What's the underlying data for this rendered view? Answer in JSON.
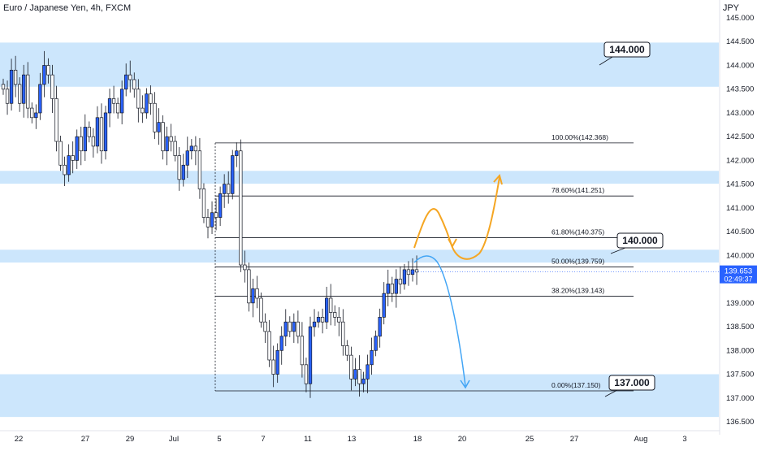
{
  "header": {
    "symbol_title": "Euro / Japanese Yen, 4h, FXCM",
    "currency_unit": "JPY"
  },
  "price_label": {
    "price": "139.653",
    "countdown": "02:49:37",
    "color": "#2962ff"
  },
  "chart_data": {
    "type": "candlestick",
    "instrument": "EUR/JPY",
    "interval": "4h",
    "ylim": [
      136.35,
      145.2
    ],
    "y_ticks": [
      136.5,
      137.0,
      137.5,
      138.0,
      138.5,
      139.0,
      139.5,
      140.0,
      140.5,
      141.0,
      141.5,
      142.0,
      142.5,
      143.0,
      143.5,
      144.0,
      144.5,
      145.0
    ],
    "x_tick_labels": [
      "22",
      "27",
      "29",
      "Jul",
      "5",
      "7",
      "11",
      "13",
      "18",
      "20",
      "25",
      "27",
      "Aug",
      "3"
    ],
    "colors": {
      "up": "#2962ff",
      "down": "#ffffff",
      "outline": "#131722",
      "zone": "#bbdefb",
      "orange_path": "#f5a623",
      "blue_path": "#42a5f5"
    },
    "zones": [
      {
        "from": 143.55,
        "to": 144.48
      },
      {
        "from": 141.51,
        "to": 141.78
      },
      {
        "from": 139.85,
        "to": 140.12
      },
      {
        "from": 136.6,
        "to": 137.5
      }
    ],
    "level_callouts": [
      {
        "label": "144.000",
        "value": 144.0
      },
      {
        "label": "140.000",
        "value": 140.0
      },
      {
        "label": "137.000",
        "value": 137.0
      }
    ],
    "fibonacci": [
      {
        "label": "100.00%(142.368)",
        "value": 142.368
      },
      {
        "label": "78.60%(141.251)",
        "value": 141.251
      },
      {
        "label": "61.80%(140.375)",
        "value": 140.375
      },
      {
        "label": "50.00%(139.759)",
        "value": 139.759
      },
      {
        "label": "38.20%(139.143)",
        "value": 139.143
      },
      {
        "label": "0.00%(137.150)",
        "value": 137.15
      }
    ],
    "closes": [
      143.5,
      143.2,
      143.9,
      143.6,
      143.2,
      143.8,
      143.1,
      142.9,
      143.0,
      143.6,
      144.0,
      143.8,
      143.3,
      142.4,
      141.9,
      141.7,
      142.1,
      142.0,
      142.5,
      142.2,
      142.7,
      142.5,
      142.3,
      142.9,
      142.2,
      143.0,
      143.3,
      143.2,
      143.0,
      143.5,
      143.8,
      143.7,
      143.5,
      143.1,
      143.0,
      143.4,
      143.2,
      142.6,
      142.8,
      142.2,
      142.5,
      142.4,
      142.1,
      141.6,
      141.9,
      142.2,
      142.3,
      142.2,
      141.4,
      140.8,
      140.6,
      140.9,
      140.8,
      141.3,
      141.5,
      141.3,
      142.1,
      142.2,
      139.8,
      139.7,
      139.0,
      139.3,
      139.1,
      138.6,
      138.4,
      137.8,
      137.5,
      138.0,
      138.3,
      138.6,
      138.4,
      138.6,
      138.3,
      137.7,
      137.3,
      138.5,
      138.6,
      138.7,
      138.6,
      139.1,
      138.8,
      138.7,
      138.6,
      138.1,
      137.9,
      137.4,
      137.6,
      137.3,
      137.4,
      137.7,
      138.0,
      138.3,
      138.7,
      139.2,
      139.4,
      139.2,
      139.5,
      139.4,
      139.7,
      139.6,
      139.7,
      139.65
    ]
  }
}
